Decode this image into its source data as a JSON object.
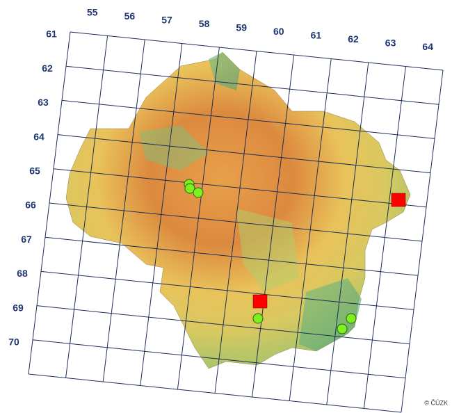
{
  "map": {
    "column_labels": [
      "55",
      "56",
      "57",
      "58",
      "59",
      "60",
      "61",
      "62",
      "63",
      "64"
    ],
    "row_labels": [
      "61",
      "62",
      "63",
      "64",
      "65",
      "66",
      "67",
      "68",
      "69",
      "70"
    ],
    "copyright": "© ČÚZK"
  }
}
